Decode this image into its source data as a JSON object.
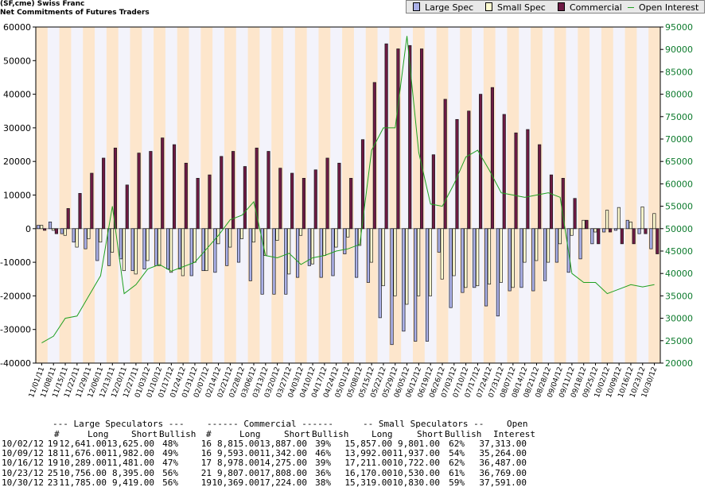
{
  "header": {
    "line1": "(SF,cme) Swiss Franc",
    "line2": "Net Commitments of Futures Traders"
  },
  "legend": [
    {
      "label": "Large Spec",
      "color": "#aab0e8",
      "kind": "box"
    },
    {
      "label": "Small Spec",
      "color": "#fffcd0",
      "kind": "box"
    },
    {
      "label": "Commercial",
      "color": "#6e1a44",
      "kind": "box"
    },
    {
      "label": "Open Interest",
      "color": "#20a020",
      "kind": "line"
    }
  ],
  "chart_data": {
    "type": "bar",
    "title": "",
    "xlabel": "",
    "ylabel": "",
    "ylim": [
      -40000,
      60000
    ],
    "y2lim": [
      20000,
      95000
    ],
    "y_ticks": [
      60000,
      50000,
      40000,
      30000,
      20000,
      10000,
      0,
      -10000,
      -20000,
      -30000,
      -40000
    ],
    "y2_ticks": [
      95000,
      90000,
      85000,
      80000,
      75000,
      70000,
      65000,
      60000,
      55000,
      50000,
      45000,
      40000,
      35000,
      30000,
      25000,
      20000
    ],
    "x_tick_labels": [
      "11/01/11",
      "11/08/11",
      "11/15/11",
      "11/22/11",
      "11/29/11",
      "12/06/11",
      "12/13/11",
      "12/20/11",
      "12/27/11",
      "01/03/12",
      "01/10/12",
      "01/17/12",
      "01/24/12",
      "01/31/12",
      "02/07/12",
      "02/14/12",
      "02/21/12",
      "02/28/12",
      "03/06/12",
      "03/13/12",
      "03/20/12",
      "03/27/12",
      "04/03/12",
      "04/10/12",
      "04/17/12",
      "04/24/12",
      "05/01/12",
      "05/08/12",
      "05/15/12",
      "05/22/12",
      "05/29/12",
      "06/05/12",
      "06/12/12",
      "06/19/12",
      "06/26/12",
      "07/03/12",
      "07/10/12",
      "07/17/12",
      "07/24/12",
      "07/31/12",
      "08/07/12",
      "08/14/12",
      "08/21/12",
      "08/28/12",
      "09/04/12",
      "09/11/12",
      "09/18/12",
      "09/25/12",
      "10/02/12",
      "10/09/12",
      "10/16/12",
      "10/23/12",
      "10/30/12"
    ],
    "series": [
      {
        "name": "Large Spec",
        "color": "#aab0e8",
        "values": [
          1000,
          2000,
          -1500,
          -4000,
          -6000,
          -9500,
          -11000,
          -9000,
          -12500,
          -12000,
          -11000,
          -12000,
          -12000,
          -14000,
          -12500,
          -13000,
          -11000,
          -10000,
          -15500,
          -19500,
          -19500,
          -19500,
          -14500,
          -11000,
          -14500,
          -14000,
          -7500,
          -14500,
          -16000,
          -26500,
          -34500,
          -30500,
          -33500,
          -33500,
          -7000,
          -23500,
          -19000,
          -17500,
          -23000,
          -26000,
          -18500,
          -17500,
          -18500,
          -15500,
          -10000,
          -13000,
          -9000,
          -4500,
          -1000,
          -500,
          2500,
          -1500,
          -6000
        ]
      },
      {
        "name": "Small Spec",
        "color": "#fffcd0",
        "values": [
          1000,
          -500,
          -2000,
          -5500,
          -3000,
          -4000,
          -7000,
          -12500,
          -13500,
          -9500,
          -11000,
          -13000,
          -14000,
          -10000,
          -12500,
          -4500,
          -5500,
          -3000,
          -4000,
          -8000,
          -3500,
          -13500,
          -2000,
          -10500,
          -8000,
          -5500,
          -2500,
          -5000,
          -10000,
          -17000,
          -20000,
          -22500,
          -20000,
          -20000,
          -15000,
          -14000,
          -17500,
          -17000,
          -16500,
          -16000,
          -17500,
          -10000,
          -9500,
          -10000,
          -4500,
          -2000,
          2500,
          -1000,
          5500,
          6300,
          2000,
          6500,
          4500
        ]
      },
      {
        "name": "Commercial",
        "color": "#6e1a44",
        "values": [
          -500,
          -1500,
          6000,
          10500,
          16500,
          21000,
          24000,
          13000,
          22500,
          23000,
          27000,
          25000,
          19500,
          15000,
          16000,
          21500,
          23000,
          18500,
          24000,
          23000,
          18000,
          16500,
          15000,
          17500,
          21000,
          19500,
          15000,
          26500,
          43500,
          55000,
          53500,
          54500,
          53500,
          22000,
          38500,
          32500,
          35000,
          40000,
          42000,
          34000,
          28500,
          29500,
          25000,
          16000,
          15000,
          9000,
          2500,
          -4500,
          -1000,
          -4500,
          -4500,
          -1500,
          -7500
        ]
      },
      {
        "name": "Open Interest",
        "color": "#20a020",
        "axis": "right",
        "values": [
          24500,
          26000,
          30000,
          30500,
          35000,
          39500,
          55000,
          35500,
          37500,
          41000,
          42000,
          40500,
          41500,
          42500,
          45500,
          48500,
          52000,
          53000,
          56000,
          44000,
          43500,
          44500,
          42000,
          43500,
          44000,
          45000,
          45500,
          46500,
          67500,
          72500,
          72500,
          93000,
          67000,
          55500,
          55000,
          60000,
          66000,
          67500,
          63000,
          58000,
          57500,
          57000,
          57500,
          58000,
          57000,
          40000,
          38000,
          38000,
          35500,
          36500,
          37500,
          37000,
          37500
        ]
      }
    ]
  },
  "table": {
    "group_headers": {
      "large": "--- Large Speculators ---",
      "commercial": "------ Commercial ------",
      "small": "-- Small Speculators --",
      "open": "Open"
    },
    "sub_headers": {
      "num1": "#",
      "long1": "Long",
      "short1": "Short",
      "bull1": "Bullish",
      "num2": "#",
      "long2": "Long",
      "short2": "Short",
      "bull2": "Bullish",
      "long3": "Long",
      "short3": "Short",
      "bull3": "Bullish",
      "oi": "Interest"
    },
    "rows": [
      [
        "10/02/12",
        "19",
        "12,641.00",
        "13,625.00",
        "48%",
        "16",
        "8,815.00",
        "13,887.00",
        "39%",
        "15,857.00",
        "9,801.00",
        "62%",
        "37,313.00"
      ],
      [
        "10/09/12",
        "18",
        "11,676.00",
        "11,982.00",
        "49%",
        "16",
        "9,593.00",
        "11,342.00",
        "46%",
        "13,992.00",
        "11,937.00",
        "54%",
        "35,264.00"
      ],
      [
        "10/16/12",
        "19",
        "10,289.00",
        "11,481.00",
        "47%",
        "17",
        "8,978.00",
        "14,275.00",
        "39%",
        "17,211.00",
        "10,722.00",
        "62%",
        "36,487.00"
      ],
      [
        "10/23/12",
        "25",
        "10,756.00",
        "8,395.00",
        "56%",
        "21",
        "9,807.00",
        "17,808.00",
        "36%",
        "16,170.00",
        "10,530.00",
        "61%",
        "36,769.00"
      ],
      [
        "10/30/12",
        "23",
        "11,785.00",
        "9,419.00",
        "56%",
        "19",
        "10,369.00",
        "17,224.00",
        "38%",
        "15,319.00",
        "10,830.00",
        "59%",
        "37,591.00"
      ]
    ]
  }
}
